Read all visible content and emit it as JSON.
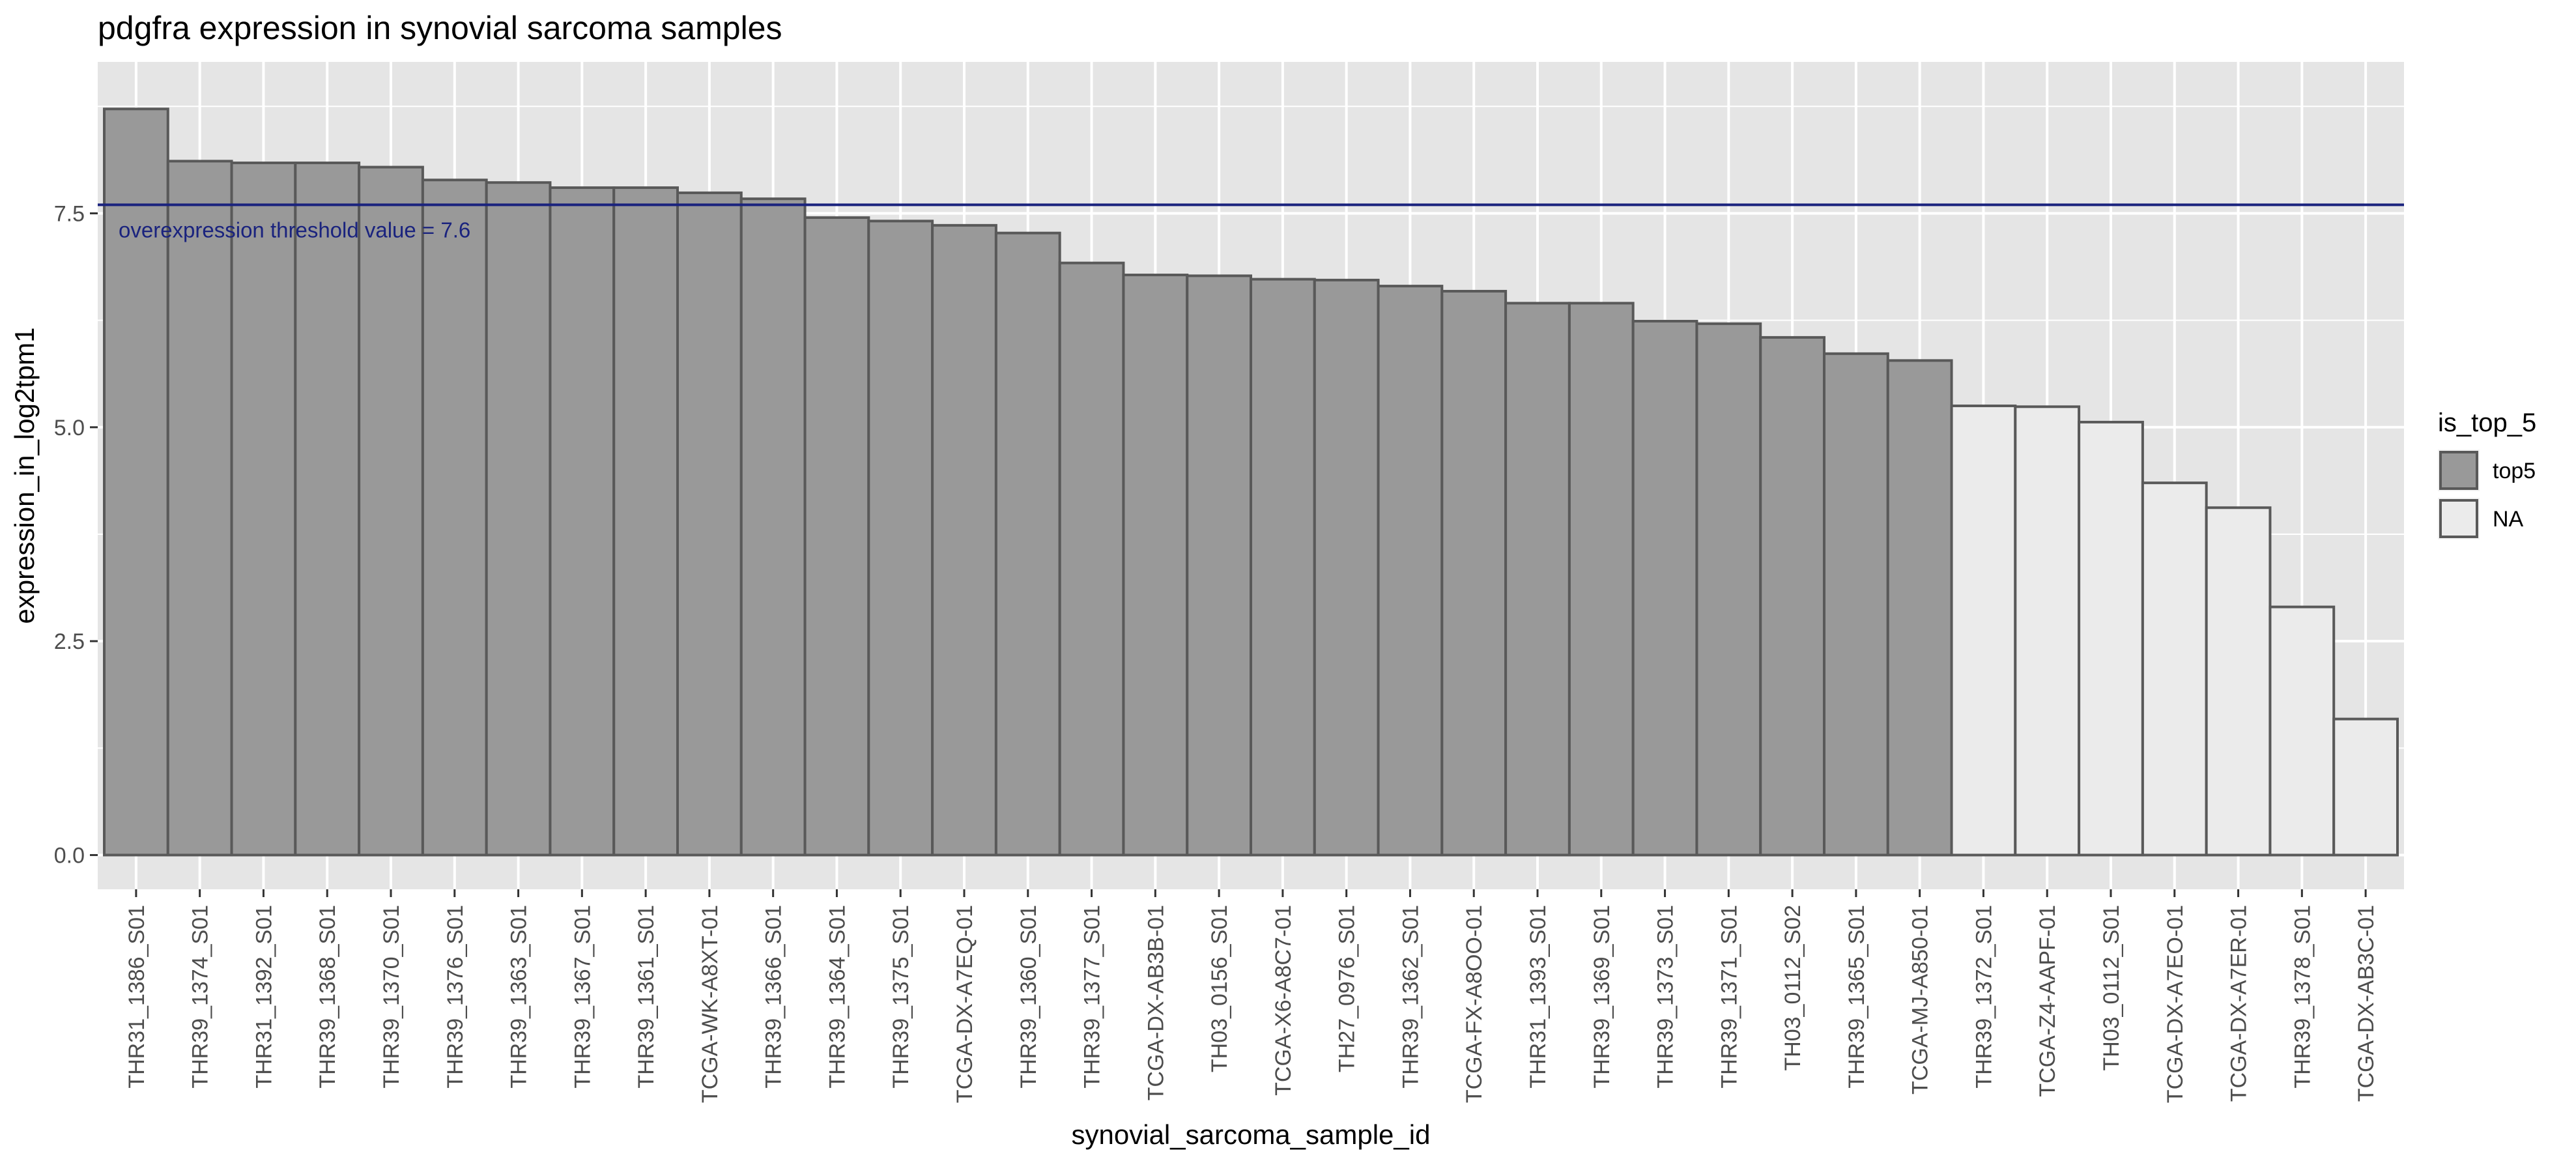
{
  "chart_data": {
    "type": "bar",
    "title": "pdgfra expression in synovial sarcoma samples",
    "xlabel": "synovial_sarcoma_sample_id",
    "ylabel": "expression_in_log2tpm1",
    "ylim": [
      -0.4,
      9.27
    ],
    "yticks": [
      0.0,
      2.5,
      5.0,
      7.5
    ],
    "ytick_labels": [
      "0.0",
      "2.5",
      "5.0",
      "7.5"
    ],
    "grid": true,
    "categories": [
      "THR31_1386_S01",
      "THR39_1374_S01",
      "THR31_1392_S01",
      "THR39_1368_S01",
      "THR39_1370_S01",
      "THR39_1376_S01",
      "THR39_1363_S01",
      "THR39_1367_S01",
      "THR39_1361_S01",
      "TCGA-WK-A8XT-01",
      "THR39_1366_S01",
      "THR39_1364_S01",
      "THR39_1375_S01",
      "TCGA-DX-A7EQ-01",
      "THR39_1360_S01",
      "THR39_1377_S01",
      "TCGA-DX-AB3B-01",
      "TH03_0156_S01",
      "TCGA-X6-A8C7-01",
      "TH27_0976_S01",
      "THR39_1362_S01",
      "TCGA-FX-A8OO-01",
      "THR31_1393_S01",
      "THR39_1369_S01",
      "THR39_1373_S01",
      "THR39_1371_S01",
      "TH03_0112_S02",
      "THR39_1365_S01",
      "TCGA-MJ-A850-01",
      "THR39_1372_S01",
      "TCGA-Z4-AAPF-01",
      "TH03_0112_S01",
      "TCGA-DX-A7EO-01",
      "TCGA-DX-A7ER-01",
      "THR39_1378_S01",
      "TCGA-DX-AB3C-01"
    ],
    "values": [
      8.72,
      8.11,
      8.09,
      8.09,
      8.04,
      7.89,
      7.86,
      7.8,
      7.8,
      7.74,
      7.67,
      7.45,
      7.41,
      7.36,
      7.27,
      6.92,
      6.78,
      6.77,
      6.73,
      6.72,
      6.65,
      6.59,
      6.45,
      6.45,
      6.24,
      6.21,
      6.05,
      5.86,
      5.78,
      5.25,
      5.24,
      5.06,
      4.35,
      4.06,
      2.9,
      1.59
    ],
    "group": [
      "top5",
      "top5",
      "top5",
      "top5",
      "top5",
      "top5",
      "top5",
      "top5",
      "top5",
      "top5",
      "top5",
      "top5",
      "top5",
      "top5",
      "top5",
      "top5",
      "top5",
      "top5",
      "top5",
      "top5",
      "top5",
      "top5",
      "top5",
      "top5",
      "top5",
      "top5",
      "top5",
      "top5",
      "top5",
      "NA",
      "NA",
      "NA",
      "NA",
      "NA",
      "NA",
      "NA"
    ],
    "threshold": {
      "value": 7.6,
      "label": "overexpression threshold  value = 7.6",
      "color": "#1a237e"
    },
    "legend": {
      "title": "is_top_5",
      "position": "right",
      "entries": [
        {
          "name": "top5",
          "color": "#999999"
        },
        {
          "name": "NA",
          "color": "#ebebeb"
        }
      ]
    },
    "colors": {
      "panel_background": "#e5e5e5",
      "grid": "#ffffff",
      "bar_outline": "#595959"
    }
  }
}
